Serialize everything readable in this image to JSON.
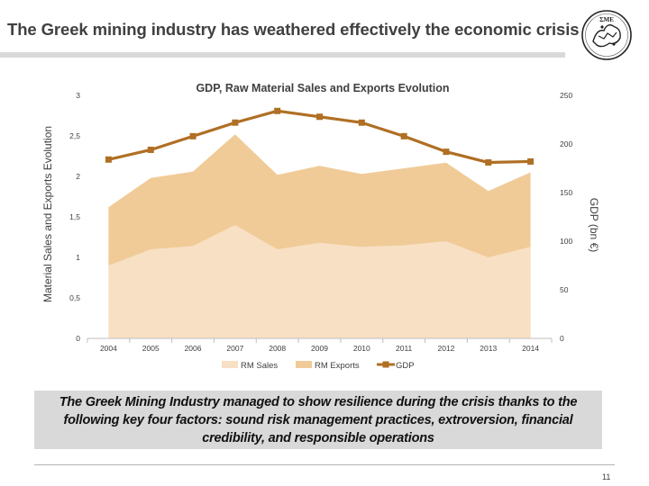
{
  "slide": {
    "title": "The Greek mining industry has weathered effectively the economic crisis",
    "logo_text": "ΣΜΕ",
    "note": "The Greek Mining Industry managed to show resilience during the crisis thanks to the following key four factors: sound risk management practices, extroversion, financial credibility, and responsible operations",
    "page_number": "11"
  },
  "chart_data": {
    "type": "area",
    "title": "GDP, Raw Material Sales and Exports Evolution",
    "categories": [
      "2004",
      "2005",
      "2006",
      "2007",
      "2008",
      "2009",
      "2010",
      "2011",
      "2012",
      "2013",
      "2014"
    ],
    "series": [
      {
        "name": "RM Sales",
        "type": "area",
        "axis": "left",
        "stacked": true,
        "color": "#f8e0c4",
        "values": [
          0.9,
          1.1,
          1.14,
          1.4,
          1.1,
          1.18,
          1.13,
          1.15,
          1.2,
          1.0,
          1.13
        ]
      },
      {
        "name": "RM Exports",
        "type": "area",
        "axis": "left",
        "stacked": true,
        "color": "#f0cb98",
        "values": [
          0.72,
          0.88,
          0.92,
          1.12,
          0.92,
          0.95,
          0.9,
          0.95,
          0.97,
          0.82,
          0.92
        ]
      },
      {
        "name": "GDP",
        "type": "line",
        "axis": "right",
        "color": "#b06f24",
        "values": [
          184,
          194,
          208,
          222,
          234,
          228,
          222,
          208,
          192,
          181,
          182
        ]
      }
    ],
    "y_left": {
      "label": "Material Sales and Exports Evolution",
      "min": 0,
      "max": 3,
      "ticks": [
        "0",
        "0,5",
        "1",
        "1,5",
        "2",
        "2,5",
        "3"
      ]
    },
    "y_right": {
      "label": "GDP (bn €)",
      "min": 0,
      "max": 250,
      "ticks": [
        "0",
        "50",
        "100",
        "150",
        "200",
        "250"
      ]
    },
    "legend": {
      "position": "bottom",
      "entries": [
        "RM Sales",
        "RM Exports",
        "GDP"
      ]
    },
    "grid": false
  }
}
